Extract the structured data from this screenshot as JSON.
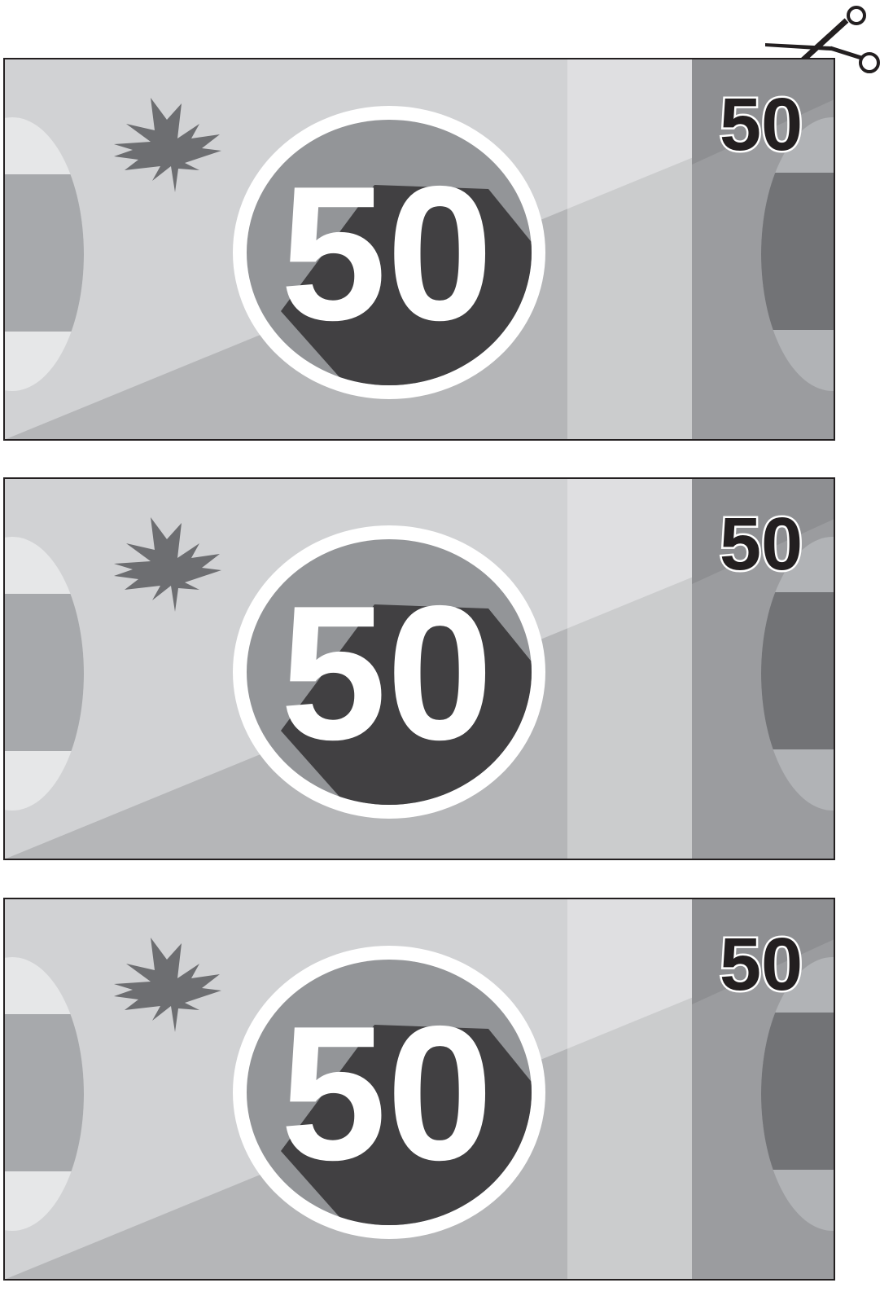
{
  "bills": [
    {
      "value": "50",
      "corner": "50"
    },
    {
      "value": "50",
      "corner": "50"
    },
    {
      "value": "50",
      "corner": "50"
    }
  ]
}
